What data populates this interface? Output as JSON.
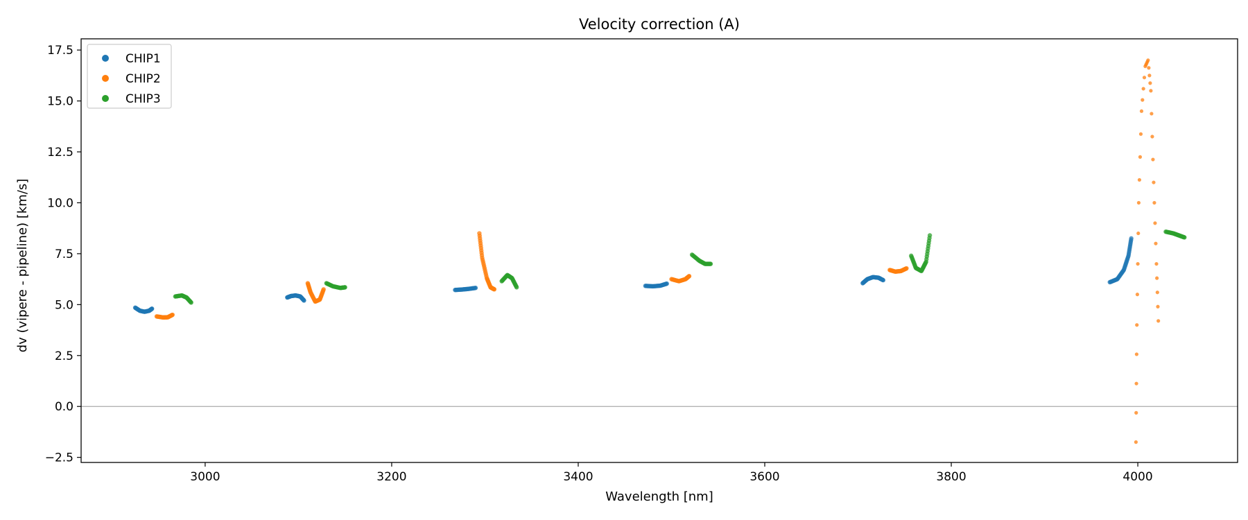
{
  "chart_data": {
    "type": "scatter",
    "title": "Velocity correction (A)",
    "xlabel": "Wavelength [nm]",
    "ylabel": "dv (vipere - pipeline) [km/s]",
    "xlim": [
      2867,
      4107
    ],
    "ylim": [
      -2.75,
      18.05
    ],
    "xticks": [
      3000,
      3200,
      3400,
      3600,
      3800,
      4000
    ],
    "yticks": [
      -2.5,
      0.0,
      2.5,
      5.0,
      7.5,
      10.0,
      12.5,
      15.0,
      17.5
    ],
    "ytick_labels": [
      "−2.5",
      "0.0",
      "2.5",
      "5.0",
      "7.5",
      "10.0",
      "12.5",
      "15.0",
      "17.5"
    ],
    "grid": false,
    "legend": "upper-left",
    "reference_line": {
      "y": 0,
      "color": "#aaaaaa"
    },
    "series": [
      {
        "name": "CHIP1",
        "color": "#1f77b4",
        "segments": [
          [
            [
              2925,
              4.85
            ],
            [
              2930,
              4.7
            ],
            [
              2935,
              4.65
            ],
            [
              2940,
              4.7
            ],
            [
              2943,
              4.8
            ]
          ],
          [
            [
              3088,
              5.35
            ],
            [
              3092,
              5.42
            ],
            [
              3097,
              5.45
            ],
            [
              3102,
              5.4
            ],
            [
              3106,
              5.2
            ]
          ],
          [
            [
              3268,
              5.72
            ],
            [
              3275,
              5.74
            ],
            [
              3282,
              5.77
            ],
            [
              3290,
              5.82
            ]
          ],
          [
            [
              3472,
              5.92
            ],
            [
              3480,
              5.9
            ],
            [
              3488,
              5.93
            ],
            [
              3495,
              6.03
            ]
          ],
          [
            [
              3705,
              6.05
            ],
            [
              3710,
              6.25
            ],
            [
              3716,
              6.35
            ],
            [
              3722,
              6.32
            ],
            [
              3727,
              6.2
            ]
          ],
          [
            [
              3970,
              6.1
            ],
            [
              3978,
              6.25
            ],
            [
              3985,
              6.7
            ],
            [
              3990,
              7.4
            ],
            [
              3993,
              8.25
            ]
          ]
        ]
      },
      {
        "name": "CHIP2",
        "color": "#ff7f0e",
        "segments": [
          [
            [
              2948,
              4.42
            ],
            [
              2955,
              4.37
            ],
            [
              2960,
              4.38
            ],
            [
              2965,
              4.5
            ]
          ],
          [
            [
              3110,
              6.05
            ],
            [
              3113,
              5.6
            ],
            [
              3118,
              5.15
            ],
            [
              3123,
              5.25
            ],
            [
              3127,
              5.75
            ]
          ],
          [
            [
              3294,
              8.5
            ],
            [
              3297,
              7.3
            ],
            [
              3302,
              6.3
            ],
            [
              3306,
              5.85
            ],
            [
              3310,
              5.75
            ]
          ],
          [
            [
              3500,
              6.25
            ],
            [
              3508,
              6.15
            ],
            [
              3515,
              6.25
            ],
            [
              3519,
              6.4
            ]
          ],
          [
            [
              3734,
              6.7
            ],
            [
              3740,
              6.62
            ],
            [
              3746,
              6.65
            ],
            [
              3752,
              6.78
            ]
          ],
          [
            [
              3998,
              -1.75
            ],
            [
              3999,
              4.0
            ],
            [
              4001,
              10.0
            ],
            [
              4004,
              14.5
            ],
            [
              4008,
              16.7
            ],
            [
              4011,
              17.0
            ],
            [
              4014,
              15.5
            ],
            [
              4017,
              11.0
            ],
            [
              4020,
              7.0
            ],
            [
              4022,
              4.2
            ]
          ]
        ]
      },
      {
        "name": "CHIP3",
        "color": "#2ca02c",
        "segments": [
          [
            [
              2968,
              5.4
            ],
            [
              2975,
              5.45
            ],
            [
              2980,
              5.35
            ],
            [
              2985,
              5.1
            ]
          ],
          [
            [
              3130,
              6.05
            ],
            [
              3137,
              5.9
            ],
            [
              3145,
              5.82
            ],
            [
              3150,
              5.85
            ]
          ],
          [
            [
              3318,
              6.15
            ],
            [
              3324,
              6.45
            ],
            [
              3329,
              6.3
            ],
            [
              3334,
              5.85
            ]
          ],
          [
            [
              3522,
              7.45
            ],
            [
              3530,
              7.15
            ],
            [
              3536,
              7.0
            ],
            [
              3542,
              7.0
            ]
          ],
          [
            [
              3757,
              7.4
            ],
            [
              3762,
              6.8
            ],
            [
              3768,
              6.65
            ],
            [
              3773,
              7.1
            ],
            [
              3777,
              8.4
            ]
          ],
          [
            [
              4030,
              8.58
            ],
            [
              4038,
              8.5
            ],
            [
              4044,
              8.4
            ],
            [
              4050,
              8.3
            ]
          ]
        ]
      }
    ]
  }
}
